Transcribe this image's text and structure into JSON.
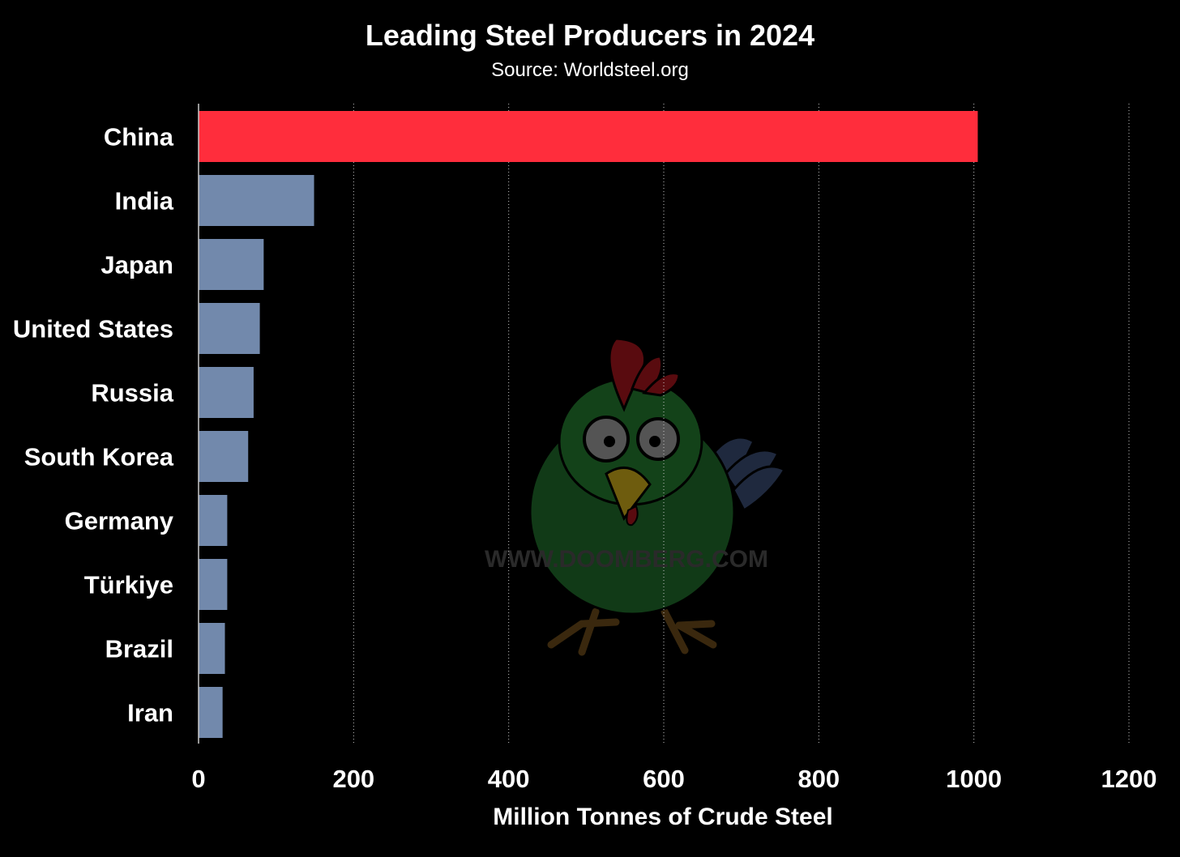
{
  "chart_data": {
    "type": "bar",
    "orientation": "horizontal",
    "title": "Leading Steel Producers in 2024",
    "subtitle": "Source: Worldsteel.org",
    "categories": [
      "China",
      "India",
      "Japan",
      "United States",
      "Russia",
      "South Korea",
      "Germany",
      "Türkiye",
      "Brazil",
      "Iran"
    ],
    "values": [
      1005,
      149,
      84,
      79,
      71,
      64,
      37,
      37,
      34,
      31
    ],
    "xlabel": "Million Tonnes of Crude Steel",
    "ylabel": "",
    "xlim": [
      0,
      1200
    ],
    "xticks": [
      "0",
      "200",
      "400",
      "600",
      "800",
      "1000",
      "1200"
    ],
    "grid": "vertical",
    "highlight_color": "#ff2d3c",
    "bar_color": "#7289ac",
    "background_color": "#000000"
  },
  "watermark": {
    "text": "WWW.DOOMBERG.COM",
    "icon": "chicken-mascot-icon"
  }
}
